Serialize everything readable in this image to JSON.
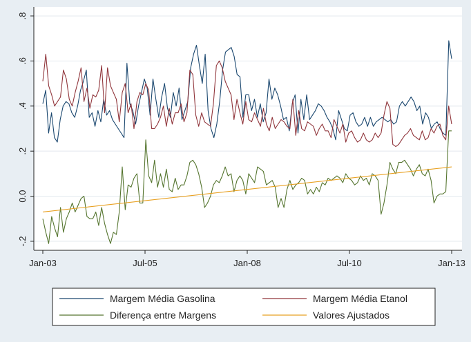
{
  "chart_data": {
    "type": "line",
    "title": "",
    "xlabel": "",
    "ylabel": "",
    "x_start": "2003-01",
    "x_end": "2013-01",
    "x_ticks": [
      {
        "label": "Jan-03",
        "value": "2003-01"
      },
      {
        "label": "Jul-05",
        "value": "2005-07"
      },
      {
        "label": "Jan-08",
        "value": "2008-01"
      },
      {
        "label": "Jul-10",
        "value": "2010-07"
      },
      {
        "label": "Jan-13",
        "value": "2013-01"
      }
    ],
    "ylim": [
      -0.24,
      0.84
    ],
    "y_ticks": [
      {
        "label": "-.2",
        "value": -0.2
      },
      {
        "label": "0.0",
        "value": 0.0
      },
      {
        "label": ".2",
        "value": 0.2
      },
      {
        "label": ".4",
        "value": 0.4
      },
      {
        "label": ".6",
        "value": 0.6
      },
      {
        "label": ".8",
        "value": 0.8
      }
    ],
    "grid": "horizontal",
    "legend_position": "bottom",
    "series": [
      {
        "name": "Margem Média Gasolina",
        "color": "#1a476f",
        "values": [
          0.41,
          0.47,
          0.28,
          0.37,
          0.26,
          0.24,
          0.34,
          0.4,
          0.42,
          0.41,
          0.37,
          0.35,
          0.4,
          0.47,
          0.51,
          0.56,
          0.35,
          0.37,
          0.31,
          0.38,
          0.33,
          0.43,
          0.36,
          0.38,
          0.34,
          0.32,
          0.3,
          0.28,
          0.26,
          0.59,
          0.41,
          0.38,
          0.32,
          0.4,
          0.46,
          0.52,
          0.48,
          0.36,
          0.52,
          0.43,
          0.35,
          0.44,
          0.5,
          0.39,
          0.35,
          0.46,
          0.4,
          0.48,
          0.34,
          0.38,
          0.42,
          0.57,
          0.63,
          0.67,
          0.58,
          0.5,
          0.63,
          0.38,
          0.3,
          0.26,
          0.32,
          0.42,
          0.56,
          0.64,
          0.65,
          0.66,
          0.62,
          0.54,
          0.53,
          0.35,
          0.45,
          0.45,
          0.38,
          0.43,
          0.35,
          0.41,
          0.33,
          0.37,
          0.52,
          0.43,
          0.48,
          0.45,
          0.4,
          0.34,
          0.35,
          0.29,
          0.41,
          0.45,
          0.28,
          0.43,
          0.34,
          0.45,
          0.34,
          0.36,
          0.38,
          0.41,
          0.4,
          0.38,
          0.35,
          0.33,
          0.3,
          0.25,
          0.38,
          0.34,
          0.3,
          0.29,
          0.36,
          0.37,
          0.33,
          0.31,
          0.32,
          0.35,
          0.31,
          0.35,
          0.31,
          0.33,
          0.34,
          0.35,
          0.34,
          0.33,
          0.34,
          0.32,
          0.33,
          0.4,
          0.42,
          0.4,
          0.42,
          0.44,
          0.42,
          0.38,
          0.4,
          0.32,
          0.37,
          0.35,
          0.3,
          0.32,
          0.33,
          0.3,
          0.28,
          0.27,
          0.69,
          0.61
        ]
      },
      {
        "name": "Margem Média Etanol",
        "color": "#90353b",
        "values": [
          0.51,
          0.63,
          0.49,
          0.45,
          0.4,
          0.42,
          0.44,
          0.56,
          0.52,
          0.43,
          0.4,
          0.46,
          0.51,
          0.57,
          0.42,
          0.48,
          0.39,
          0.45,
          0.44,
          0.47,
          0.58,
          0.37,
          0.57,
          0.49,
          0.46,
          0.43,
          0.33,
          0.46,
          0.5,
          0.37,
          0.41,
          0.3,
          0.42,
          0.46,
          0.45,
          0.5,
          0.47,
          0.3,
          0.3,
          0.32,
          0.35,
          0.4,
          0.31,
          0.39,
          0.32,
          0.37,
          0.37,
          0.41,
          0.33,
          0.37,
          0.56,
          0.54,
          0.36,
          0.31,
          0.37,
          0.33,
          0.32,
          0.31,
          0.41,
          0.58,
          0.6,
          0.57,
          0.51,
          0.48,
          0.45,
          0.34,
          0.43,
          0.37,
          0.32,
          0.42,
          0.34,
          0.33,
          0.37,
          0.34,
          0.31,
          0.39,
          0.32,
          0.29,
          0.35,
          0.3,
          0.32,
          0.34,
          0.33,
          0.31,
          0.3,
          0.43,
          0.27,
          0.38,
          0.3,
          0.29,
          0.33,
          0.32,
          0.31,
          0.27,
          0.3,
          0.32,
          0.29,
          0.29,
          0.26,
          0.34,
          0.31,
          0.28,
          0.32,
          0.24,
          0.28,
          0.29,
          0.26,
          0.24,
          0.25,
          0.28,
          0.25,
          0.24,
          0.25,
          0.28,
          0.26,
          0.28,
          0.36,
          0.42,
          0.39,
          0.23,
          0.22,
          0.23,
          0.25,
          0.27,
          0.28,
          0.3,
          0.27,
          0.26,
          0.25,
          0.29,
          0.25,
          0.26,
          0.3,
          0.28,
          0.31,
          0.32,
          0.27,
          0.25,
          0.4,
          0.32
        ]
      },
      {
        "name": "Diferença entre Margens",
        "color": "#55752f",
        "values": [
          -0.1,
          -0.16,
          -0.21,
          -0.09,
          -0.14,
          -0.18,
          -0.05,
          -0.16,
          -0.1,
          -0.07,
          -0.03,
          -0.07,
          -0.04,
          -0.01,
          0.0,
          -0.09,
          -0.1,
          -0.1,
          -0.07,
          -0.13,
          -0.05,
          -0.12,
          -0.17,
          -0.21,
          -0.16,
          -0.17,
          -0.07,
          0.13,
          -0.06,
          0.05,
          0.04,
          0.08,
          0.1,
          -0.03,
          -0.03,
          0.25,
          0.09,
          0.06,
          0.16,
          0.04,
          0.1,
          0.04,
          0.12,
          0.03,
          0.02,
          0.08,
          0.03,
          0.05,
          0.05,
          0.09,
          0.15,
          0.16,
          0.14,
          0.1,
          0.04,
          -0.05,
          -0.03,
          0.0,
          0.05,
          0.07,
          0.06,
          0.09,
          0.13,
          0.09,
          0.1,
          0.02,
          0.07,
          0.09,
          0.07,
          0.01,
          0.1,
          0.08,
          0.06,
          0.13,
          0.12,
          0.11,
          0.05,
          0.06,
          0.07,
          0.04,
          -0.05,
          -0.01,
          -0.05,
          0.03,
          0.07,
          0.03,
          0.05,
          0.06,
          0.08,
          0.07,
          0.01,
          0.03,
          0.01,
          0.04,
          0.02,
          0.06,
          0.05,
          0.08,
          0.07,
          0.08,
          0.09,
          0.08,
          0.06,
          0.1,
          0.08,
          0.07,
          0.05,
          0.06,
          0.09,
          0.07,
          0.08,
          0.05,
          0.1,
          0.09,
          0.07,
          -0.08,
          -0.03,
          0.05,
          0.15,
          0.12,
          0.1,
          0.15,
          0.15,
          0.16,
          0.14,
          0.12,
          0.09,
          0.12,
          0.14,
          0.1,
          0.09,
          0.12,
          0.07,
          -0.03,
          0.0,
          0.01,
          0.01,
          0.02,
          0.29,
          0.29
        ]
      },
      {
        "name": "Valores Ajustados",
        "color": "#e8a020",
        "values": [
          -0.07,
          0.13
        ]
      }
    ]
  }
}
